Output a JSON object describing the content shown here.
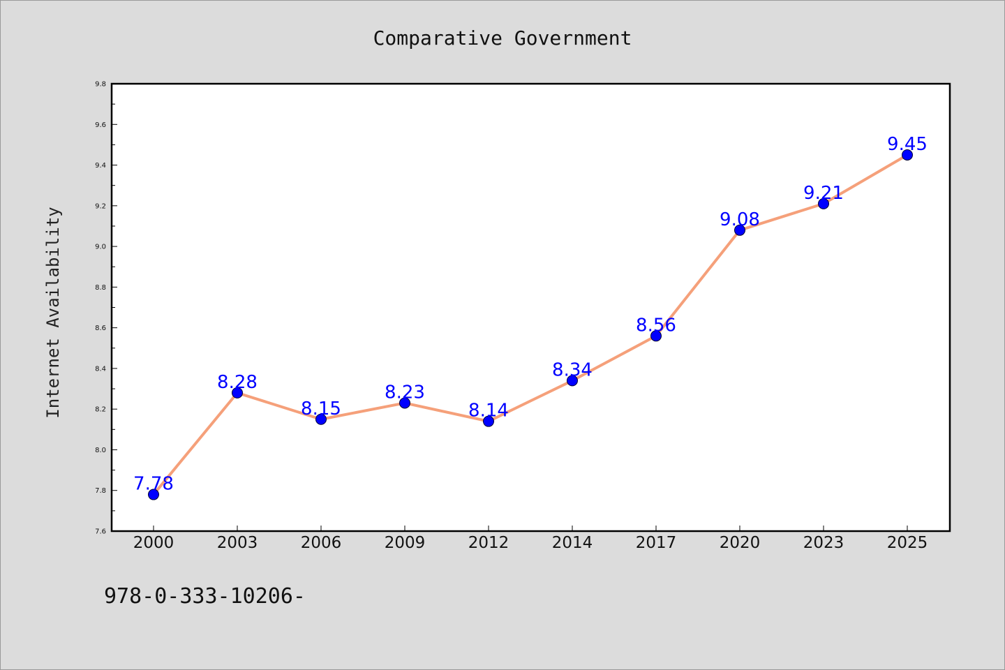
{
  "chart_data": {
    "type": "line",
    "title": "Comparative Government",
    "xlabel": "",
    "ylabel": "Internet Availability",
    "categories": [
      "2000",
      "2003",
      "2006",
      "2009",
      "2012",
      "2014",
      "2017",
      "2020",
      "2023",
      "2025"
    ],
    "values": [
      7.78,
      8.28,
      8.15,
      8.23,
      8.14,
      8.34,
      8.56,
      9.08,
      9.21,
      9.45
    ],
    "data_labels": [
      "7.78",
      "8.28",
      "8.15",
      "8.23",
      "8.14",
      "8.34",
      "8.56",
      "9.08",
      "9.21",
      "9.45"
    ],
    "ylim": [
      7.6,
      9.8
    ],
    "yticks": [
      "7.6",
      "7.8",
      "8.0",
      "8.2",
      "8.4",
      "8.6",
      "8.8",
      "9.0",
      "9.2",
      "9.4",
      "9.6",
      "9.8"
    ],
    "grid": false,
    "line_color": "#f5a07a",
    "marker_color": "#0000ff"
  },
  "footer": {
    "isbn_text": "978-0-333-10206-"
  }
}
